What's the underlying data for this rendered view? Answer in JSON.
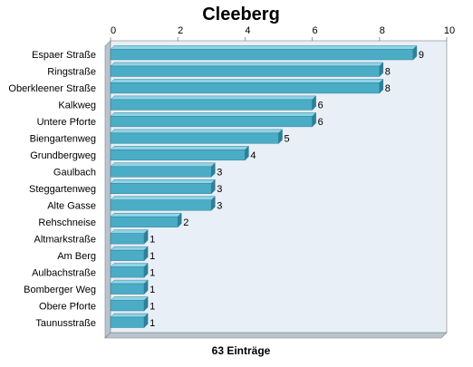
{
  "chart_data": {
    "type": "bar",
    "orientation": "horizontal",
    "title": "Cleeberg",
    "xlabel": "63 Einträge",
    "ylabel": "",
    "xlim": [
      0,
      10
    ],
    "xticks": [
      "0",
      "2",
      "4",
      "6",
      "8",
      "10"
    ],
    "axis_position": "top",
    "grid": false,
    "legend": "none",
    "categories": [
      "Espaer Straße",
      "Ringstraße",
      "Oberkleener Straße",
      "Kalkweg",
      "Untere Pforte",
      "Biengartenweg",
      "Grundbergweg",
      "Gaulbach",
      "Steggartenweg",
      "Alte Gasse",
      "Rehschneise",
      "Altmarkstraße",
      "Am Berg",
      "Aulbachstraße",
      "Bomberger Weg",
      "Obere Pforte",
      "Taunusstraße"
    ],
    "values": [
      9,
      8,
      8,
      6,
      6,
      5,
      4,
      3,
      3,
      3,
      2,
      1,
      1,
      1,
      1,
      1,
      1
    ],
    "colors": {
      "bar": "#4bacc6",
      "bar_dark": "#2f7f97",
      "bar_light": "#8fd3e6",
      "plot_bg": "#e8eff6",
      "plot_side": "#b8c4cf",
      "axis": "#808080"
    }
  }
}
